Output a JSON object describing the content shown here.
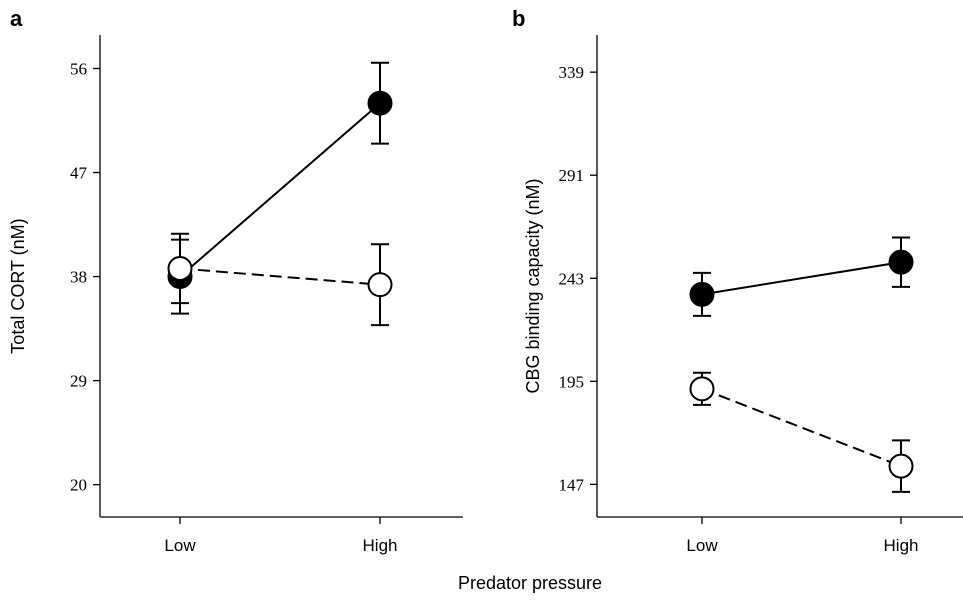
{
  "shared_xlabel": "Predator pressure",
  "colors": {
    "filled": "#000000",
    "open": "#ffffff",
    "stroke": "#000000"
  },
  "chart_data": [
    {
      "panel": "a",
      "type": "line",
      "xlabel": "",
      "ylabel": "Total CORT (nM)",
      "categories": [
        "Low",
        "High"
      ],
      "ylim": [
        17.2,
        58.9
      ],
      "yticks": [
        20,
        29,
        38,
        47,
        56
      ],
      "tick_labels": [
        "20",
        "29",
        "38",
        "47",
        "56"
      ],
      "grid": false,
      "series": [
        {
          "marker": "filled",
          "line": "solid",
          "values": [
            38.0,
            53.0
          ],
          "err": [
            3.2,
            3.5
          ]
        },
        {
          "marker": "open",
          "line": "dashed",
          "values": [
            38.7,
            37.3
          ],
          "err": [
            3.0,
            3.5
          ]
        }
      ]
    },
    {
      "panel": "b",
      "type": "line",
      "xlabel": "",
      "ylabel": "CBG binding capacity (nM)",
      "categories": [
        "Low",
        "High"
      ],
      "ylim": [
        131.8,
        356.3
      ],
      "yticks": [
        147,
        195,
        243,
        291,
        339
      ],
      "tick_labels": [
        "147",
        "195",
        "243",
        "291",
        "339"
      ],
      "grid": false,
      "series": [
        {
          "marker": "filled",
          "line": "solid",
          "values": [
            235.5,
            250.5
          ],
          "err": [
            10.0,
            11.5
          ]
        },
        {
          "marker": "open",
          "line": "dashed",
          "values": [
            191.5,
            155.5
          ],
          "err": [
            7.5,
            12.0
          ]
        }
      ]
    }
  ]
}
